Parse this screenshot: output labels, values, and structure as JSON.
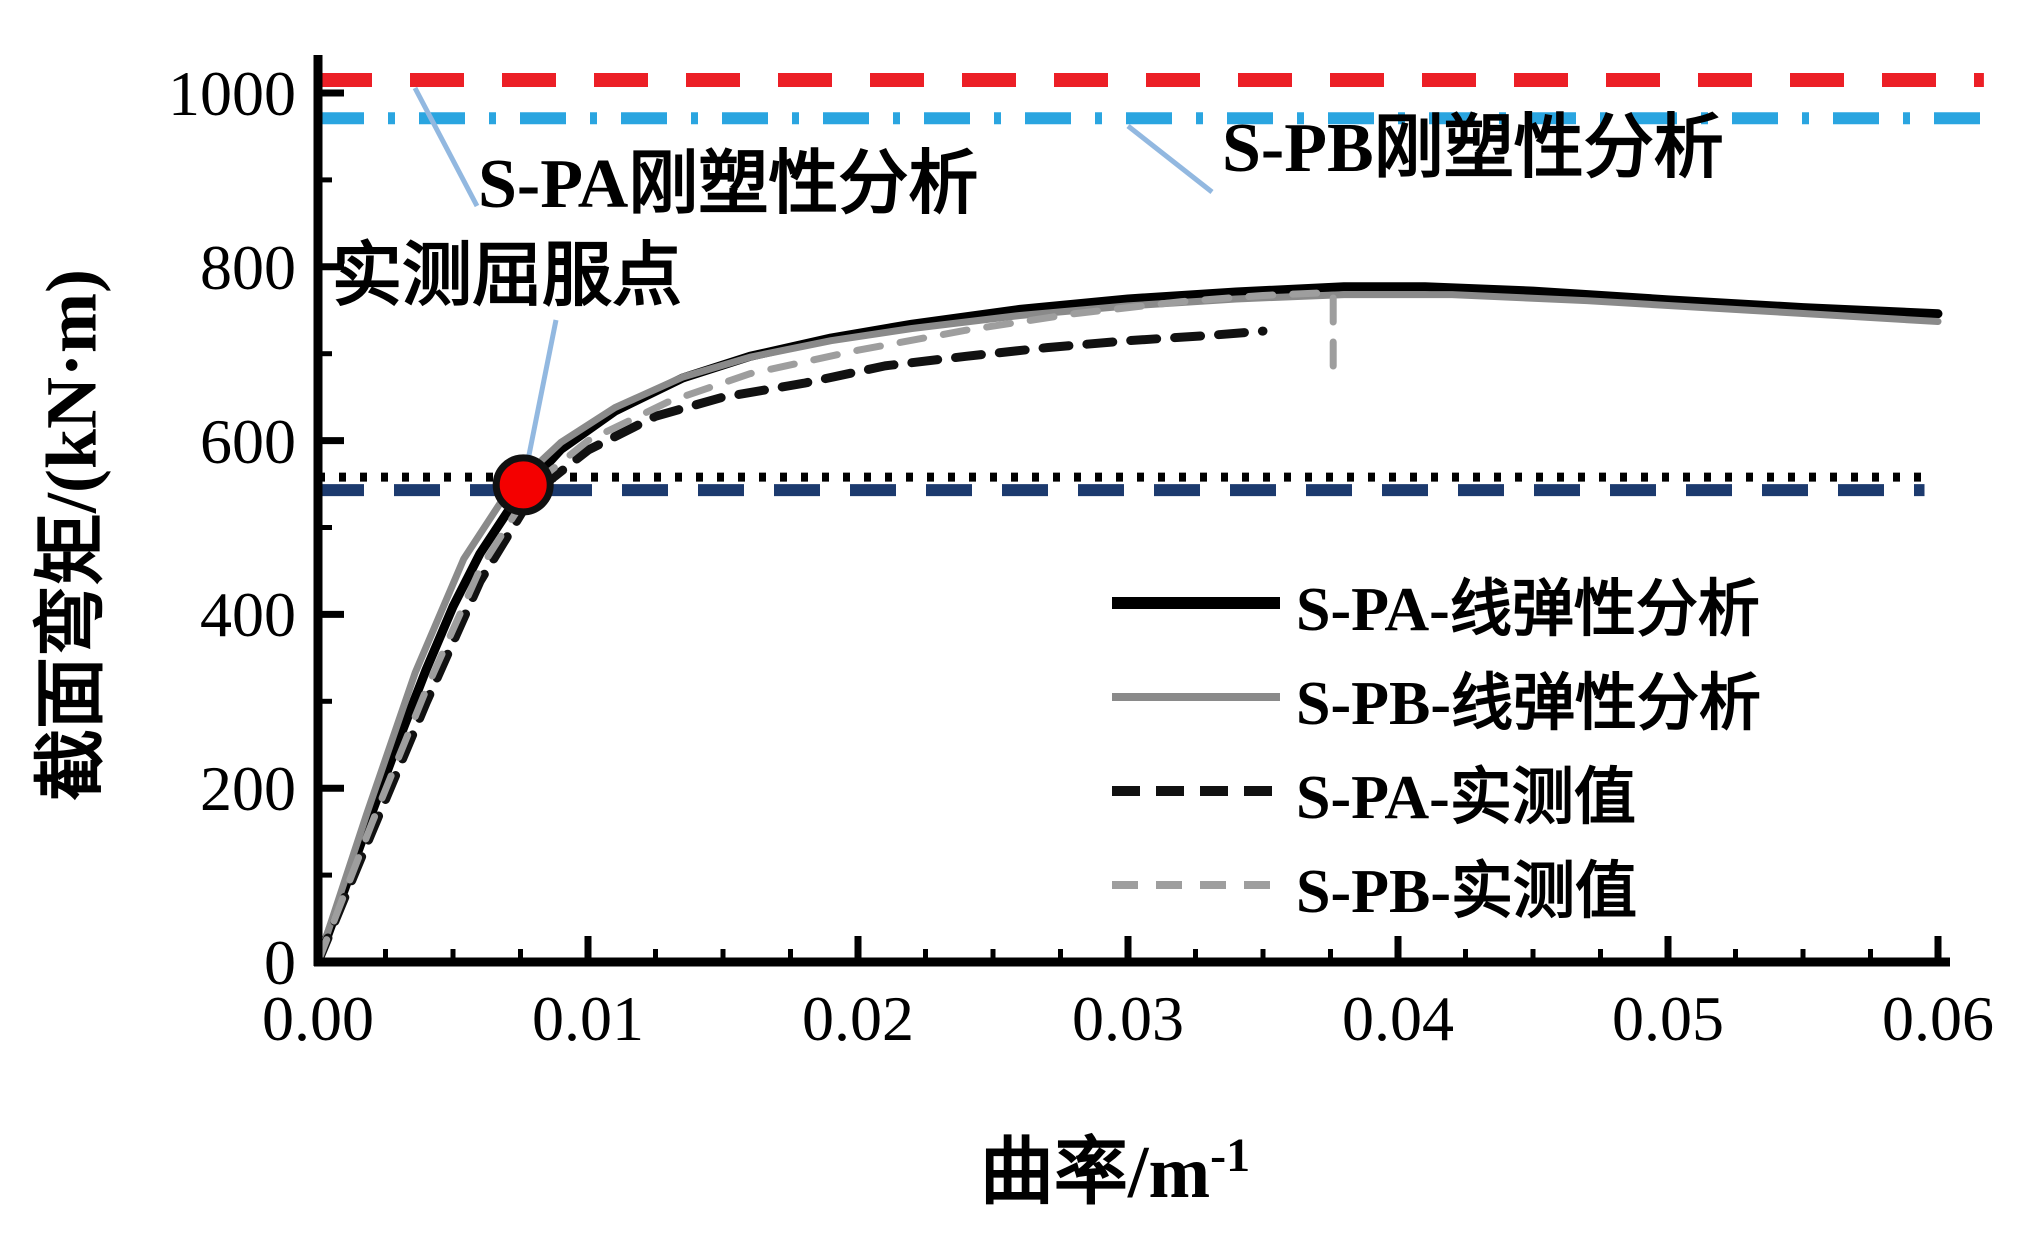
{
  "figure": {
    "background": "#ffffff"
  },
  "chart_data": {
    "type": "line",
    "title": "",
    "xlabel": "曲率/m⁻¹",
    "xlabel_base": "曲率/m",
    "xlabel_sup": "-1",
    "ylabel": "截面弯矩/(kN·m)",
    "xlim": [
      0,
      0.06
    ],
    "ylim": [
      0,
      1000
    ],
    "grid": false,
    "legend_position": "center-right",
    "x_ticks": [
      "0.00",
      "0.01",
      "0.02",
      "0.03",
      "0.04",
      "0.05",
      "0.06"
    ],
    "y_ticks": [
      "0",
      "200",
      "400",
      "600",
      "800",
      "1000"
    ],
    "series": [
      {
        "name": "S-PA-线弹性分析",
        "color": "#000000",
        "style": "solid",
        "x": [
          0,
          0.001,
          0.002,
          0.003,
          0.004,
          0.005,
          0.006,
          0.007,
          0.008,
          0.009,
          0.011,
          0.0135,
          0.016,
          0.019,
          0.022,
          0.026,
          0.03,
          0.034,
          0.038,
          0.041,
          0.045,
          0.05,
          0.055,
          0.06
        ],
        "y": [
          0,
          85,
          172,
          256,
          336,
          409,
          470,
          517,
          556,
          590,
          634,
          672,
          697,
          718,
          734,
          751,
          763,
          771,
          777,
          777,
          772,
          762,
          753,
          746
        ]
      },
      {
        "name": "S-PB-线弹性分析",
        "color": "#8a8a8a",
        "style": "solid",
        "x": [
          0,
          0.0018,
          0.0036,
          0.0054,
          0.007,
          0.009,
          0.011,
          0.0135,
          0.016,
          0.019,
          0.022,
          0.026,
          0.03,
          0.034,
          0.038,
          0.042,
          0.047,
          0.053,
          0.06
        ],
        "y": [
          0,
          170,
          333,
          464,
          540,
          598,
          638,
          673,
          696,
          715,
          729,
          744,
          755,
          763,
          768,
          768,
          761,
          750,
          737
        ]
      },
      {
        "name": "S-PA-实测值",
        "color": "#111111",
        "style": "dashed",
        "x": [
          0,
          0.002,
          0.004,
          0.006,
          0.008,
          0.01,
          0.0125,
          0.015,
          0.018,
          0.021,
          0.024,
          0.027,
          0.03,
          0.033,
          0.035
        ],
        "y": [
          0,
          150,
          298,
          438,
          540,
          589,
          628,
          650,
          666,
          686,
          697,
          707,
          715,
          721,
          726
        ]
      },
      {
        "name": "S-PB-实测值",
        "color": "#9e9e9e",
        "style": "dashed",
        "x": [
          0,
          0.002,
          0.004,
          0.006,
          0.008,
          0.01,
          0.013,
          0.016,
          0.02,
          0.024,
          0.028,
          0.032,
          0.035,
          0.0372,
          0.0376,
          0.0376
        ],
        "y": [
          0,
          160,
          313,
          452,
          550,
          600,
          645,
          677,
          704,
          727,
          746,
          760,
          767,
          770,
          768,
          663
        ]
      }
    ],
    "reference_lines": [
      {
        "id": "s-pa-rigid-plastic",
        "label": "S-PA刚塑性分析",
        "value": 1015,
        "color": "#ec1f26",
        "style": "dashed",
        "x_range": [
          0,
          0.0617
        ]
      },
      {
        "id": "s-pb-rigid-plastic",
        "label": "S-PB刚塑性分析",
        "value": 971,
        "color": "#2aa5e0",
        "style": "dash-dot",
        "x_range": [
          0,
          0.0617
        ]
      },
      {
        "id": "yield-dotted",
        "label": "实测屈服点",
        "value": 558,
        "color": "#000000",
        "style": "dotted",
        "x_range": [
          0,
          0.0595
        ]
      },
      {
        "id": "yield-dashed",
        "label": "实测屈服点",
        "value": 543,
        "color": "#1c3a6e",
        "style": "dashed",
        "x_range": [
          0,
          0.0595
        ]
      }
    ],
    "yield_marker": {
      "x": 0.0076,
      "y": 549,
      "color": "#f40000",
      "edge_color": "#111111",
      "label": "实测屈服点"
    },
    "annotations": [
      {
        "id": "ann-s-pa-rigid",
        "text": "S-PA刚塑性分析"
      },
      {
        "id": "ann-yield",
        "text": "实测屈服点"
      },
      {
        "id": "ann-s-pb-rigid",
        "text": "S-PB刚塑性分析"
      }
    ],
    "legend": [
      {
        "label": "S-PA-线弹性分析",
        "color": "#000000",
        "style": "solid",
        "thick": true
      },
      {
        "label": "S-PB-线弹性分析",
        "color": "#8a8a8a",
        "style": "solid",
        "thick": false
      },
      {
        "label": "S-PA-实测值",
        "color": "#111111",
        "style": "dashed",
        "thick": true
      },
      {
        "label": "S-PB-实测值",
        "color": "#9e9e9e",
        "style": "dashed",
        "thick": false
      }
    ],
    "callout_color": "#92b8e0"
  }
}
